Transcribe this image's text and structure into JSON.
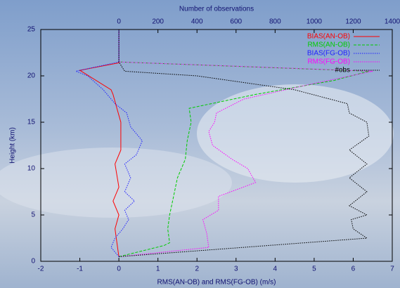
{
  "chart_data": {
    "type": "profile",
    "xlabel": "RMS(AN-OB) and RMS(FG-OB) (m/s)",
    "ylabel": "Height (km)",
    "x2label": "Number of observations",
    "xlim": [
      -2,
      7
    ],
    "xticks": [
      -2,
      -1,
      0,
      1,
      2,
      3,
      4,
      5,
      6,
      7
    ],
    "x2lim": [
      -400,
      1400
    ],
    "x2ticks": [
      0,
      200,
      400,
      600,
      800,
      1000,
      1200,
      1400
    ],
    "ylim": [
      0,
      25
    ],
    "yticks": [
      0,
      5,
      10,
      15,
      20,
      25
    ],
    "legend": "top-right",
    "series": [
      {
        "name": "BIAS(AN-OB)",
        "color": "#ff0000",
        "dash": "solid",
        "y": [
          0.5,
          2,
          3.5,
          5,
          6.5,
          8,
          10.5,
          12,
          15,
          16.5,
          18,
          18.5,
          20.6,
          21.4,
          25
        ],
        "values": [
          0,
          -0.05,
          -0.1,
          0,
          -0.15,
          0,
          -0.1,
          0.05,
          0.05,
          -0.05,
          -0.15,
          -0.2,
          -1.0,
          0,
          0
        ]
      },
      {
        "name": "RMS(AN-OB)",
        "color": "#00cc00",
        "dash": "dashed",
        "y": [
          0.5,
          1.7,
          2,
          3.5,
          5,
          7,
          9,
          11,
          13,
          15,
          16.5,
          18,
          19.5,
          20.5,
          21.5,
          25
        ],
        "values": [
          0,
          1.15,
          1.3,
          1.25,
          1.3,
          1.4,
          1.5,
          1.7,
          1.75,
          1.85,
          1.8,
          3.5,
          5.5,
          6.4,
          0,
          0
        ]
      },
      {
        "name": "BIAS(FG-OB)",
        "color": "#2020ff",
        "dash": "dotted",
        "y": [
          0.5,
          1.5,
          2.5,
          3.5,
          4.5,
          5.5,
          6.5,
          7.5,
          9,
          10.5,
          11.5,
          13,
          14.5,
          16,
          17,
          18.5,
          20,
          20.5,
          21.5,
          25
        ],
        "values": [
          0,
          -0.2,
          -0.1,
          0.1,
          0.25,
          0.15,
          0.4,
          0.15,
          0.3,
          0.15,
          0.45,
          0.6,
          0.3,
          0.2,
          -0.1,
          -0.4,
          -0.8,
          -1.1,
          0,
          0
        ]
      },
      {
        "name": "RMS(FG-OB)",
        "color": "#ff00ff",
        "dash": "dotted",
        "y": [
          0.5,
          1.5,
          3,
          4.5,
          5.5,
          7,
          8.5,
          10,
          11,
          12.5,
          14,
          15,
          16,
          17.5,
          19,
          20.5,
          21.5,
          25
        ],
        "values": [
          0,
          2.3,
          2.25,
          2.15,
          2.55,
          2.55,
          3.5,
          3.3,
          2.9,
          2.4,
          2.3,
          2.45,
          2.5,
          3.2,
          4.8,
          6.5,
          0,
          0
        ]
      },
      {
        "name": "#obs",
        "color": "#000000",
        "dash": "dotted",
        "axis": "x2",
        "y": [
          0.5,
          2.5,
          3.5,
          4.5,
          5,
          6,
          7.5,
          9,
          10.5,
          12,
          13.5,
          15,
          16,
          17,
          18.5,
          20,
          20.5,
          21.5,
          25
        ],
        "values": [
          0,
          1270,
          1200,
          1190,
          1270,
          1180,
          1270,
          1180,
          1270,
          1180,
          1280,
          1270,
          1180,
          1170,
          900,
          400,
          30,
          0,
          0
        ]
      }
    ]
  }
}
